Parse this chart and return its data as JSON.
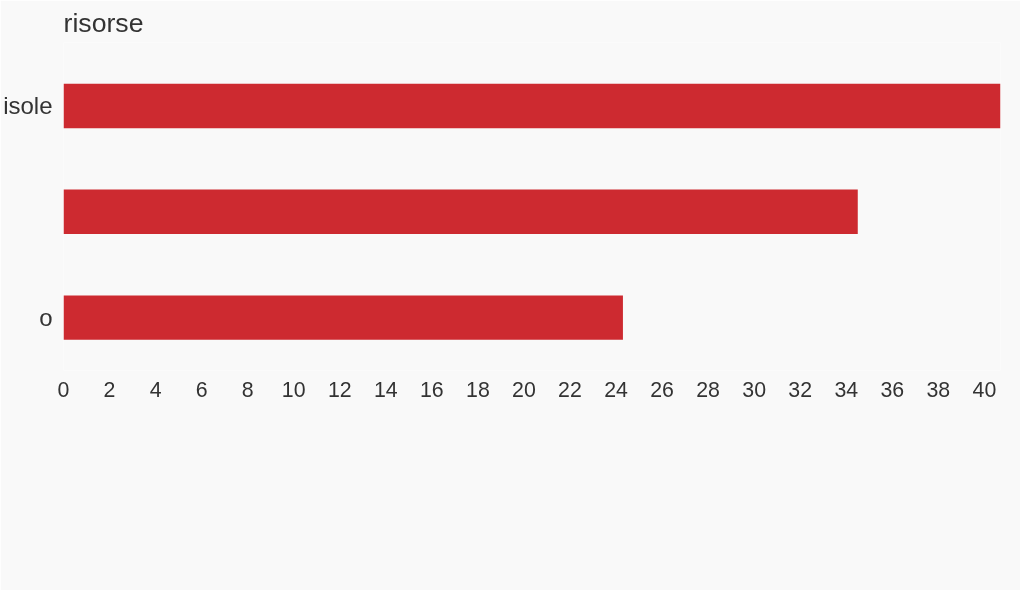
{
  "chart_data": {
    "type": "bar",
    "orientation": "horizontal",
    "title": "risorse",
    "categories": [
      "isole",
      null,
      "o"
    ],
    "values": [
      40.7,
      34.5,
      24.3
    ],
    "color": "#cd2a30",
    "xlim": [
      0,
      40.7
    ],
    "xticks": [
      0,
      2,
      4,
      6,
      8,
      10,
      12,
      14,
      16,
      18,
      20,
      22,
      24,
      26,
      28,
      30,
      32,
      34,
      36,
      38,
      40
    ],
    "grid": false
  }
}
